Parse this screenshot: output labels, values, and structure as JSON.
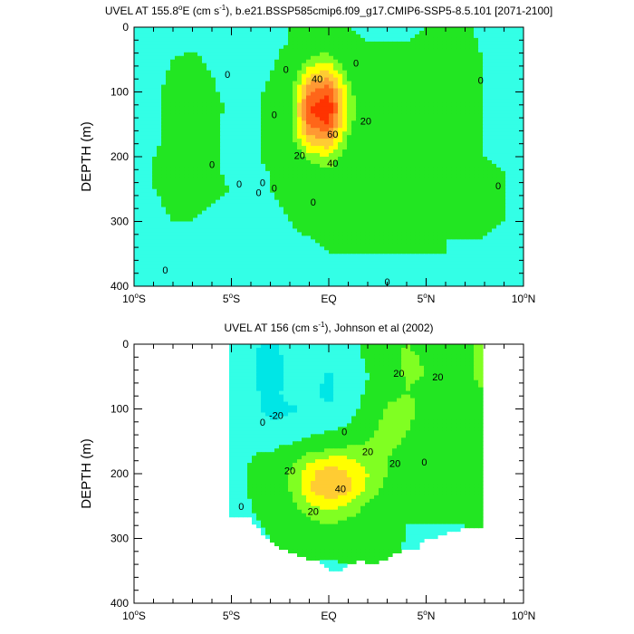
{
  "chart_data": [
    {
      "type": "heatmap",
      "title": "UVEL AT 155.8°E (cm s⁻¹), b.e21.BSSP585cmip6.f09_g17.CMIP6-SSP5-8.5.101 [2071-2100]",
      "title_parts": [
        "UVEL AT 155.8",
        "o",
        "E (cm s",
        "-1",
        "), b.e21.BSSP585cmip6.f09_g17.CMIP6-SSP5-8.5.101 [2071-2100]"
      ],
      "ylabel": "DEPTH (m)",
      "x_ticks": [
        {
          "value": -10,
          "label": [
            "10",
            "o",
            "S"
          ]
        },
        {
          "value": -5,
          "label": [
            "5",
            "o",
            "S"
          ]
        },
        {
          "value": 0,
          "label": [
            "EQ"
          ]
        },
        {
          "value": 5,
          "label": [
            "5",
            "o",
            "N"
          ]
        },
        {
          "value": 10,
          "label": [
            "10",
            "o",
            "N"
          ]
        }
      ],
      "y_ticks": [
        0,
        100,
        200,
        300,
        400
      ],
      "xlim": [
        -10,
        10
      ],
      "ylim": [
        0,
        400
      ],
      "y_inverted": true,
      "x": [
        -10,
        -9,
        -8,
        -7,
        -6,
        -5,
        -4,
        -3,
        -2,
        -1,
        0,
        1,
        2,
        3,
        4,
        5,
        6,
        7,
        8,
        9,
        10
      ],
      "y": [
        0,
        25,
        50,
        75,
        100,
        125,
        150,
        175,
        200,
        225,
        250,
        275,
        300,
        325,
        350,
        375,
        400
      ],
      "z": [
        [
          -5,
          -4,
          -3,
          -2,
          -3,
          -6,
          -8,
          -8,
          0,
          4,
          5,
          0,
          -2,
          -2,
          -3,
          0,
          2,
          1,
          -2,
          -3,
          -5
        ],
        [
          -5,
          -3,
          -1,
          -1,
          -2,
          -5,
          -7,
          -4,
          1,
          10,
          12,
          4,
          0,
          0,
          0,
          4,
          3,
          2,
          -1,
          -3,
          -5
        ],
        [
          -5,
          -3,
          0,
          1,
          -1,
          -4,
          -6,
          -2,
          5,
          22,
          26,
          10,
          2,
          0,
          2,
          6,
          3,
          2,
          0,
          -2,
          -5
        ],
        [
          -5,
          -2,
          1,
          2,
          0,
          -3,
          -4,
          0,
          10,
          40,
          48,
          18,
          4,
          1,
          2,
          4,
          2,
          1,
          0,
          -2,
          -6
        ],
        [
          -4,
          -1,
          2,
          3,
          1,
          -2,
          -3,
          2,
          14,
          60,
          70,
          25,
          6,
          2,
          2,
          3,
          1,
          1,
          0,
          -2,
          -6
        ],
        [
          -4,
          -1,
          2,
          4,
          2,
          -1,
          -2,
          3,
          16,
          70,
          80,
          28,
          6,
          2,
          2,
          2,
          1,
          1,
          0,
          -1,
          -5
        ],
        [
          -4,
          -1,
          2,
          3,
          1,
          -2,
          -2,
          3,
          15,
          62,
          70,
          25,
          6,
          2,
          2,
          2,
          1,
          1,
          0,
          -1,
          -5
        ],
        [
          -3,
          -1,
          2,
          3,
          1,
          -1,
          -2,
          2,
          12,
          45,
          50,
          18,
          5,
          2,
          2,
          2,
          1,
          1,
          0,
          -1,
          -5
        ],
        [
          -3,
          0,
          2,
          2,
          1,
          -1,
          -1,
          1,
          6,
          25,
          30,
          12,
          4,
          2,
          2,
          2,
          1,
          1,
          0,
          -1,
          -4
        ],
        [
          -3,
          0,
          1,
          2,
          1,
          -1,
          -1,
          0,
          3,
          12,
          15,
          7,
          3,
          2,
          2,
          2,
          1,
          1,
          1,
          0,
          -3
        ],
        [
          -3,
          0,
          1,
          1,
          1,
          0,
          -1,
          0,
          2,
          6,
          7,
          4,
          2,
          2,
          2,
          2,
          1,
          1,
          1,
          0,
          -2
        ],
        [
          -4,
          -1,
          1,
          1,
          0,
          -1,
          -2,
          -1,
          1,
          3,
          3,
          2,
          2,
          2,
          2,
          1,
          1,
          1,
          1,
          0,
          -2
        ],
        [
          -4,
          -2,
          0,
          0,
          -1,
          -2,
          -3,
          -2,
          0,
          2,
          2,
          2,
          2,
          1,
          1,
          1,
          1,
          1,
          1,
          0,
          -1
        ],
        [
          -5,
          -3,
          -1,
          -1,
          -2,
          -3,
          -4,
          -3,
          -1,
          0,
          1,
          1,
          1,
          1,
          1,
          1,
          0,
          0,
          0,
          -1,
          -2
        ],
        [
          -5,
          -4,
          -2,
          -2,
          -3,
          -4,
          -4,
          -4,
          -2,
          -1,
          0,
          0,
          0,
          0,
          0,
          0,
          0,
          -1,
          -1,
          -2,
          -3
        ],
        [
          -6,
          -5,
          -3,
          -3,
          -4,
          -5,
          -5,
          -4,
          -3,
          -2,
          -1,
          -1,
          -1,
          -1,
          -1,
          -1,
          -1,
          -2,
          -2,
          -3,
          -4
        ],
        [
          -6,
          -5,
          -4,
          -4,
          -5,
          -6,
          -6,
          -5,
          -4,
          -3,
          -2,
          -2,
          -2,
          -2,
          -2,
          -2,
          -2,
          -3,
          -3,
          -4,
          -5
        ]
      ],
      "contour_labels": [
        {
          "text": "40",
          "x": -0.6,
          "y": 80
        },
        {
          "text": "20",
          "x": 1.9,
          "y": 145
        },
        {
          "text": "60",
          "x": 0.2,
          "y": 165
        },
        {
          "text": "20",
          "x": -1.5,
          "y": 198
        },
        {
          "text": "40",
          "x": 0.2,
          "y": 210
        },
        {
          "text": "0",
          "x": -5.2,
          "y": 73
        },
        {
          "text": "0",
          "x": -2.2,
          "y": 65
        },
        {
          "text": "0",
          "x": 1.4,
          "y": 55
        },
        {
          "text": "0",
          "x": 7.8,
          "y": 82
        },
        {
          "text": "0",
          "x": -6.0,
          "y": 212
        },
        {
          "text": "0",
          "x": -4.6,
          "y": 242
        },
        {
          "text": "0",
          "x": -3.4,
          "y": 240
        },
        {
          "text": "0",
          "x": -3.6,
          "y": 255
        },
        {
          "text": "0",
          "x": -2.8,
          "y": 135
        },
        {
          "text": "0",
          "x": -2.8,
          "y": 248
        },
        {
          "text": "0",
          "x": -0.8,
          "y": 270
        },
        {
          "text": "0",
          "x": 8.7,
          "y": 245
        },
        {
          "text": "0",
          "x": -8.4,
          "y": 375
        },
        {
          "text": "0",
          "x": 3.0,
          "y": 393
        }
      ]
    },
    {
      "type": "heatmap",
      "title": "UVEL AT 156 (cm s⁻¹), Johnson et al (2002)",
      "title_parts": [
        "UVEL AT 156 (cm s",
        "-1",
        "), Johnson et al (2002)"
      ],
      "ylabel": "DEPTH (m)",
      "x_ticks": [
        {
          "value": -10,
          "label": [
            "10",
            "o",
            "S"
          ]
        },
        {
          "value": -5,
          "label": [
            "5",
            "o",
            "S"
          ]
        },
        {
          "value": 0,
          "label": [
            "EQ"
          ]
        },
        {
          "value": 5,
          "label": [
            "5",
            "o",
            "N"
          ]
        },
        {
          "value": 10,
          "label": [
            "10",
            "o",
            "N"
          ]
        }
      ],
      "y_ticks": [
        0,
        100,
        200,
        300,
        400
      ],
      "xlim": [
        -10,
        10
      ],
      "ylim": [
        0,
        400
      ],
      "y_inverted": true,
      "data_xrange": [
        -5,
        8
      ],
      "x": [
        -5,
        -4,
        -3,
        -2,
        -1,
        0,
        1,
        2,
        3,
        4,
        5,
        6,
        7,
        8
      ],
      "y": [
        0,
        25,
        50,
        75,
        100,
        125,
        150,
        175,
        200,
        225,
        250,
        275,
        300,
        325,
        350
      ],
      "z": [
        [
          -10,
          -15,
          -25,
          -12,
          -8,
          -10,
          -5,
          5,
          15,
          20,
          15,
          8,
          12,
          30
        ],
        [
          -12,
          -18,
          -30,
          -15,
          -12,
          -18,
          -8,
          2,
          12,
          25,
          18,
          10,
          15,
          28
        ],
        [
          -14,
          -18,
          -28,
          -18,
          -12,
          -22,
          -10,
          0,
          10,
          22,
          20,
          12,
          15,
          25
        ],
        [
          -12,
          -16,
          -25,
          -15,
          -15,
          -25,
          -8,
          2,
          15,
          20,
          15,
          10,
          12,
          20
        ],
        [
          -10,
          -14,
          -25,
          -22,
          -18,
          -18,
          -5,
          5,
          22,
          25,
          15,
          8,
          10,
          18
        ],
        [
          -8,
          -12,
          -18,
          -15,
          -10,
          -8,
          0,
          12,
          28,
          22,
          12,
          6,
          8,
          15
        ],
        [
          -6,
          -5,
          -8,
          -3,
          5,
          12,
          15,
          20,
          25,
          18,
          10,
          5,
          6,
          12
        ],
        [
          -6,
          0,
          5,
          15,
          25,
          30,
          30,
          25,
          20,
          12,
          8,
          4,
          5,
          10
        ],
        [
          -8,
          2,
          10,
          22,
          38,
          48,
          40,
          30,
          20,
          8,
          5,
          2,
          3,
          8
        ],
        [
          -10,
          2,
          8,
          20,
          38,
          50,
          42,
          28,
          15,
          5,
          3,
          2,
          2,
          5
        ],
        [
          -12,
          0,
          5,
          15,
          28,
          35,
          28,
          18,
          10,
          2,
          1,
          0,
          0,
          2
        ],
        [
          -12,
          -2,
          2,
          10,
          18,
          22,
          18,
          12,
          6,
          0,
          0,
          0,
          0,
          0
        ],
        [
          -10,
          -4,
          0,
          5,
          10,
          12,
          10,
          8,
          4,
          0,
          -5,
          -5,
          0,
          0
        ],
        [
          -8,
          -6,
          -2,
          2,
          5,
          5,
          6,
          5,
          2,
          -2,
          -8,
          -8,
          -5,
          -5
        ],
        [
          -10,
          -8,
          -5,
          -2,
          -5,
          -8,
          -5,
          -2,
          0,
          -5,
          -10,
          -10,
          -8,
          -8
        ]
      ],
      "bottom_profile": [
        [
          -5,
          265
        ],
        [
          -4,
          268
        ],
        [
          -3.5,
          290
        ],
        [
          -3,
          305
        ],
        [
          -2.5,
          315
        ],
        [
          -2,
          320
        ],
        [
          -1.5,
          328
        ],
        [
          -0.5,
          335
        ],
        [
          0,
          350
        ],
        [
          0.5,
          350
        ],
        [
          1,
          338
        ],
        [
          1.5,
          335
        ],
        [
          2.5,
          338
        ],
        [
          3,
          330
        ],
        [
          3.5,
          320
        ],
        [
          4,
          318
        ],
        [
          4.5,
          315
        ],
        [
          5,
          300
        ],
        [
          5.5,
          298
        ],
        [
          6,
          292
        ],
        [
          6.5,
          288
        ],
        [
          7,
          282
        ],
        [
          7.5,
          285
        ],
        [
          8,
          285
        ]
      ],
      "contour_labels": [
        {
          "text": "20",
          "x": 3.6,
          "y": 45
        },
        {
          "text": "20",
          "x": 5.6,
          "y": 50
        },
        {
          "text": "-20",
          "x": -2.7,
          "y": 110
        },
        {
          "text": "0",
          "x": 0.8,
          "y": 135
        },
        {
          "text": "0",
          "x": -3.4,
          "y": 120
        },
        {
          "text": "0",
          "x": -4.5,
          "y": 250
        },
        {
          "text": "20",
          "x": 2.0,
          "y": 166
        },
        {
          "text": "20",
          "x": -2.0,
          "y": 195
        },
        {
          "text": "40",
          "x": 0.6,
          "y": 223
        },
        {
          "text": "20",
          "x": 3.4,
          "y": 184
        },
        {
          "text": "20",
          "x": -0.8,
          "y": 258
        },
        {
          "text": "0",
          "x": 4.9,
          "y": 182
        }
      ]
    }
  ]
}
